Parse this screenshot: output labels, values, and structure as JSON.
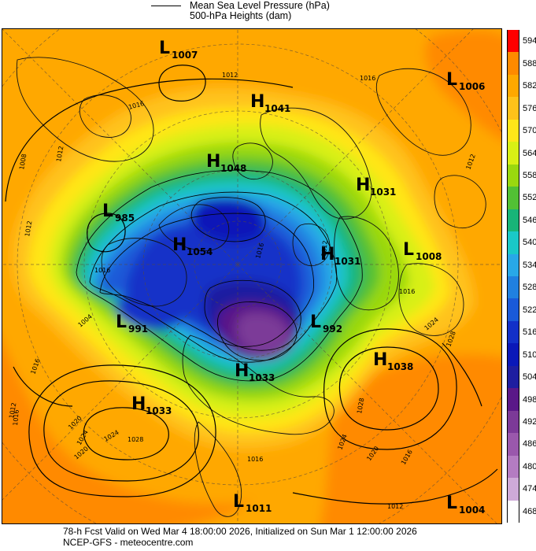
{
  "header": {
    "legend_line_label": "Mean Sea Level Pressure (hPa)",
    "subtitle": "500-hPa Heights (dam)"
  },
  "footer": {
    "valid_line": "78-h Fcst Valid on Wed Mar  4 18:00:00 2026, Initialized on Sun Mar  1 12:00:00 2026",
    "source_line": "NCEP-GFS  - meteocentre.com"
  },
  "colorbar": {
    "values": [
      "594",
      "588",
      "582",
      "576",
      "570",
      "564",
      "558",
      "552",
      "546",
      "540",
      "534",
      "528",
      "522",
      "516",
      "510",
      "504",
      "498",
      "492",
      "486",
      "480",
      "474",
      "468"
    ],
    "colors": [
      "#ff0000",
      "#ff8a00",
      "#ffa800",
      "#ffc21a",
      "#ffe619",
      "#d8f015",
      "#9ad80f",
      "#52c035",
      "#18b478",
      "#1ac8c8",
      "#28a8e8",
      "#2080e0",
      "#1a5ad8",
      "#1230c8",
      "#0a18b8",
      "#1e1ea0",
      "#5a1888",
      "#7c3a98",
      "#9a58ac",
      "#b47cc2",
      "#ceaad8",
      "#ffffff"
    ]
  },
  "map": {
    "pressure_systems": [
      {
        "type": "L",
        "value": "1007"
      },
      {
        "type": "L",
        "value": "1006"
      },
      {
        "type": "H",
        "value": "1041"
      },
      {
        "type": "H",
        "value": "1048"
      },
      {
        "type": "H",
        "value": "1031"
      },
      {
        "type": "L",
        "value": "985"
      },
      {
        "type": "H",
        "value": "1054"
      },
      {
        "type": "H",
        "value": "1031"
      },
      {
        "type": "L",
        "value": "1008"
      },
      {
        "type": "L",
        "value": "991"
      },
      {
        "type": "L",
        "value": "992"
      },
      {
        "type": "H",
        "value": "1038"
      },
      {
        "type": "H",
        "value": "1033"
      },
      {
        "type": "H",
        "value": "1033"
      },
      {
        "type": "L",
        "value": "1011"
      },
      {
        "type": "L",
        "value": "1004"
      }
    ],
    "contour_labels": [
      "1016",
      "1012",
      "1016",
      "1008",
      "1012",
      "1012",
      "1016",
      "1024",
      "1028",
      "1016",
      "1012",
      "1004",
      "1016",
      "1012",
      "1024",
      "1020",
      "1016",
      "1020",
      "1024",
      "1028",
      "1016",
      "1020",
      "1024",
      "1028",
      "1016",
      "1012",
      "1016",
      "1012"
    ]
  }
}
